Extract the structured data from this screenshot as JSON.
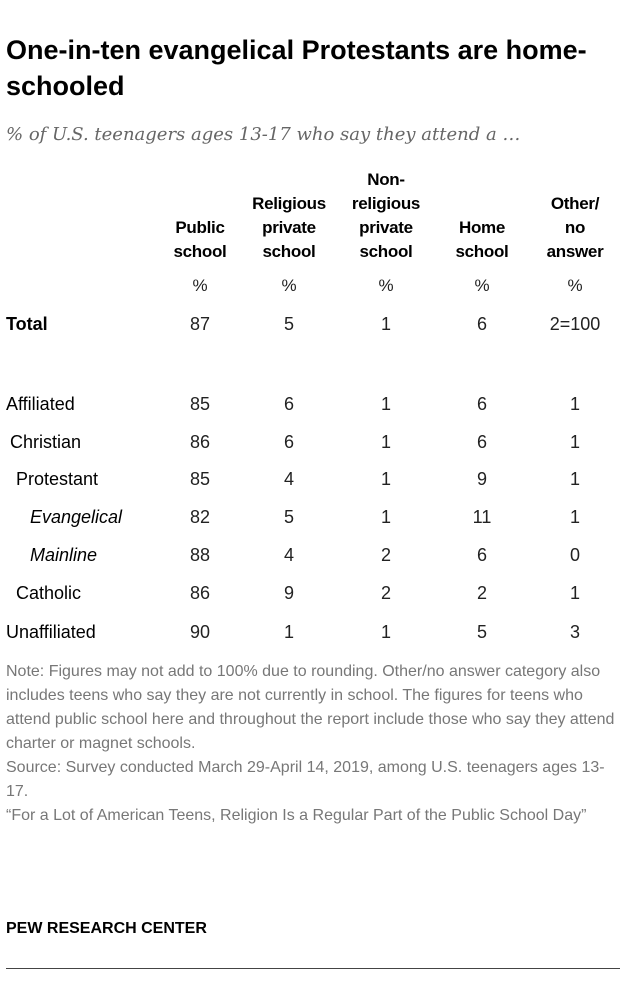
{
  "chart_data": {
    "type": "table",
    "title": "One-in-ten evangelical Protestants are home-schooled",
    "subtitle": "% of U.S. teenagers ages 13-17 who say they attend a …",
    "columns": [
      "Public school",
      "Religious private school",
      "Non-religious private school",
      "Home school",
      "Other/ no answer"
    ],
    "column_headers": [
      [
        "Public",
        "school"
      ],
      [
        "Religious",
        "private",
        "school"
      ],
      [
        "Non-",
        "religious",
        "private",
        "school"
      ],
      [
        "Home",
        "school"
      ],
      [
        "Other/",
        "no",
        "answer"
      ]
    ],
    "unit": "%",
    "rows": [
      {
        "label": "Total",
        "values": [
          "87",
          "5",
          "1",
          "6",
          "2=100"
        ],
        "style": "bold"
      },
      {
        "label": "Affiliated",
        "values": [
          "85",
          "6",
          "1",
          "6",
          "1"
        ],
        "style": "indent0"
      },
      {
        "label": "Christian",
        "values": [
          "86",
          "6",
          "1",
          "6",
          "1"
        ],
        "style": "indent1"
      },
      {
        "label": "Protestant",
        "values": [
          "85",
          "4",
          "1",
          "9",
          "1"
        ],
        "style": "indent2"
      },
      {
        "label": "Evangelical",
        "values": [
          "82",
          "5",
          "1",
          "11",
          "1"
        ],
        "style": "indent3"
      },
      {
        "label": "Mainline",
        "values": [
          "88",
          "4",
          "2",
          "6",
          "0"
        ],
        "style": "indent3"
      },
      {
        "label": "Catholic",
        "values": [
          "86",
          "9",
          "2",
          "2",
          "1"
        ],
        "style": "indent2"
      },
      {
        "label": "Unaffiliated",
        "values": [
          "90",
          "1",
          "1",
          "5",
          "3"
        ],
        "style": "indent0"
      }
    ]
  },
  "notes": {
    "note": "Note: Figures may not add to 100% due to rounding. Other/no answer category also includes teens who say they are not currently in school. The figures for teens who attend public school here and throughout the report include those who say they attend charter or magnet schools.",
    "source": "Source: Survey conducted March 29-April 14, 2019, among U.S. teenagers ages 13-17.",
    "report": "“For a Lot of American Teens, Religion Is a Regular Part of the Public School Day”"
  },
  "brand": "PEW RESEARCH CENTER"
}
